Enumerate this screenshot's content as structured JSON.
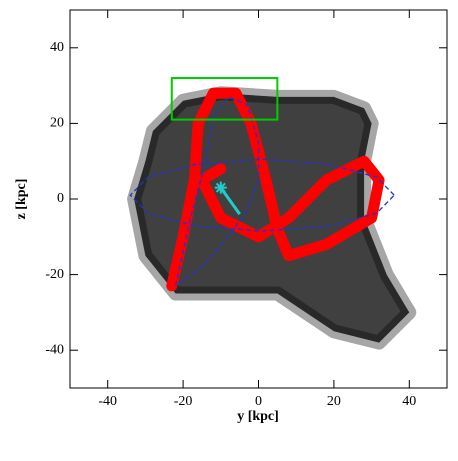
{
  "chart_data": {
    "type": "scatter",
    "xlabel": "y [kpc]",
    "ylabel": "z [kpc]",
    "xlim": [
      -50,
      50
    ],
    "ylim": [
      -50,
      50
    ],
    "xticks": [
      -40,
      -20,
      0,
      20,
      40
    ],
    "yticks": [
      -40,
      -20,
      0,
      20,
      40
    ],
    "series": [
      {
        "style": "area",
        "color": "#000000",
        "x": [
          -28,
          -20,
          -10,
          5,
          20,
          28,
          30,
          28,
          28,
          34,
          40,
          32,
          20,
          5,
          -22,
          -30,
          -33,
          -30
        ],
        "y": [
          18,
          26,
          28,
          27,
          27,
          24,
          20,
          10,
          -5,
          -20,
          -30,
          -38,
          -35,
          -25,
          -25,
          -15,
          0,
          10
        ]
      },
      {
        "style": "stream",
        "color": "#ff0000",
        "x": [
          -23,
          -20,
          -17,
          -16,
          -12,
          -6,
          -2,
          2,
          5,
          8,
          18,
          30,
          32,
          28,
          18,
          8,
          0,
          -10,
          -15,
          -10
        ],
        "y": [
          -23,
          -10,
          5,
          20,
          28,
          28,
          20,
          5,
          -8,
          -15,
          -12,
          -5,
          5,
          10,
          5,
          -5,
          -10,
          -5,
          5,
          8
        ]
      },
      {
        "style": "dashed",
        "color": "#2233cc",
        "x": [
          36,
          31.3,
          18.5,
          1,
          -16.5,
          -29.3,
          -34,
          -29.3,
          -16.5,
          1,
          18.5,
          31.3,
          36
        ],
        "y": [
          1,
          5.8,
          9.2,
          10.5,
          9.2,
          5.8,
          1,
          -3.8,
          -7.2,
          -8.5,
          -7.2,
          -3.8,
          1
        ]
      },
      {
        "style": "dashed",
        "color": "#2233cc",
        "x": [
          -22,
          -18,
          -14,
          -12,
          -8,
          -3,
          0,
          0,
          -3,
          -8,
          -15,
          -22
        ],
        "y": [
          -23,
          -5,
          10,
          22,
          27,
          25,
          15,
          5,
          -3,
          -10,
          -18,
          -23
        ]
      },
      {
        "style": "track",
        "color": "#22cccc",
        "x": [
          -10,
          -5
        ],
        "y": [
          3,
          -4
        ]
      },
      {
        "style": "star",
        "color": "#22cccc",
        "x": [
          -10
        ],
        "y": [
          3
        ]
      }
    ],
    "box": {
      "xlim": [
        -23,
        5
      ],
      "ylim": [
        21,
        32
      ],
      "color": "#00cc00"
    }
  }
}
